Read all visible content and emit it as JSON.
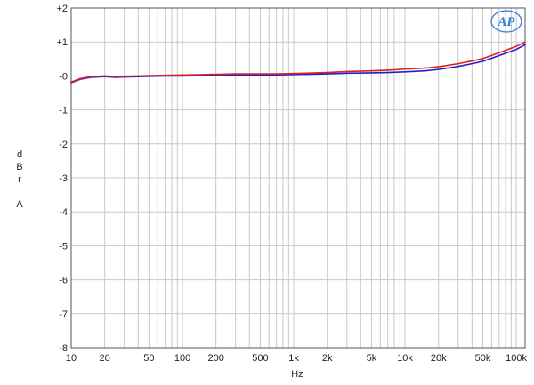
{
  "chart_data": {
    "type": "line",
    "title": "",
    "xlabel": "Hz",
    "ylabel_chars": [
      "d",
      "B",
      "r",
      "",
      "A"
    ],
    "xscale": "log",
    "xlim": [
      10,
      120000
    ],
    "ylim": [
      -8,
      2
    ],
    "grid": true,
    "x_ticks": [
      {
        "value": 10,
        "label": "10"
      },
      {
        "value": 20,
        "label": "20"
      },
      {
        "value": 50,
        "label": "50"
      },
      {
        "value": 100,
        "label": "100"
      },
      {
        "value": 200,
        "label": "200"
      },
      {
        "value": 500,
        "label": "500"
      },
      {
        "value": 1000,
        "label": "1k"
      },
      {
        "value": 2000,
        "label": "2k"
      },
      {
        "value": 5000,
        "label": "5k"
      },
      {
        "value": 10000,
        "label": "10k"
      },
      {
        "value": 20000,
        "label": "20k"
      },
      {
        "value": 50000,
        "label": "50k"
      },
      {
        "value": 100000,
        "label": "100k"
      }
    ],
    "y_ticks": [
      {
        "value": 2,
        "label": "+2"
      },
      {
        "value": 1,
        "label": "+1"
      },
      {
        "value": 0,
        "label": "-0"
      },
      {
        "value": -1,
        "label": "-1"
      },
      {
        "value": -2,
        "label": "-2"
      },
      {
        "value": -3,
        "label": "-3"
      },
      {
        "value": -4,
        "label": "-4"
      },
      {
        "value": -5,
        "label": "-5"
      },
      {
        "value": -6,
        "label": "-6"
      },
      {
        "value": -7,
        "label": "-7"
      },
      {
        "value": -8,
        "label": "-8"
      }
    ],
    "series": [
      {
        "color": "#1f1fd0",
        "x": [
          10,
          12,
          15,
          20,
          25,
          30,
          40,
          50,
          70,
          100,
          150,
          200,
          300,
          500,
          700,
          1000,
          2000,
          3000,
          5000,
          7000,
          10000,
          15000,
          20000,
          30000,
          40000,
          50000,
          70000,
          100000,
          120000
        ],
        "y": [
          -0.2,
          -0.1,
          -0.04,
          -0.02,
          -0.04,
          -0.03,
          -0.02,
          -0.01,
          0.0,
          0.0,
          0.01,
          0.02,
          0.03,
          0.03,
          0.03,
          0.04,
          0.06,
          0.08,
          0.09,
          0.1,
          0.12,
          0.15,
          0.19,
          0.28,
          0.36,
          0.43,
          0.6,
          0.78,
          0.92
        ]
      },
      {
        "color": "#e02020",
        "x": [
          10,
          12,
          15,
          20,
          25,
          30,
          40,
          50,
          70,
          100,
          150,
          200,
          300,
          500,
          700,
          1000,
          2000,
          3000,
          5000,
          7000,
          10000,
          15000,
          20000,
          30000,
          40000,
          50000,
          70000,
          100000,
          120000
        ],
        "y": [
          -0.18,
          -0.08,
          -0.02,
          0.0,
          -0.02,
          -0.01,
          0.0,
          0.01,
          0.02,
          0.03,
          0.04,
          0.05,
          0.06,
          0.06,
          0.06,
          0.07,
          0.1,
          0.13,
          0.15,
          0.17,
          0.2,
          0.23,
          0.27,
          0.36,
          0.44,
          0.51,
          0.68,
          0.87,
          1.0
        ]
      }
    ]
  }
}
